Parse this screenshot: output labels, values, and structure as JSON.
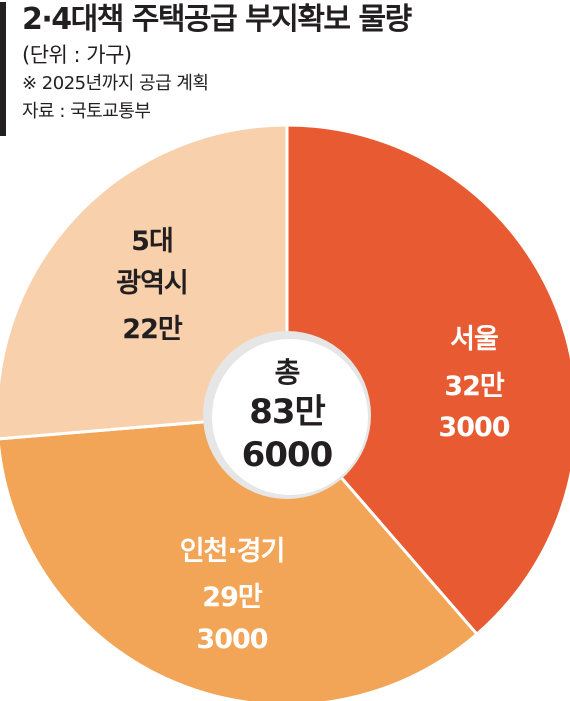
{
  "header": {
    "title": "2·4대책 주택공급 부지확보 물량",
    "unit": "(단위 : 가구)",
    "note": "※ 2025년까지 공급 계획",
    "source": "자료 : 국토교통부"
  },
  "colors": {
    "seoul": "#e85b32",
    "incheon_gyeonggi": "#f2a557",
    "metro": "#f8d0ac",
    "center_fill": "#ffffff",
    "center_ring": "#e6e6e6"
  },
  "chart_data": {
    "type": "pie",
    "title": "2·4대책 주택공급 부지확보 물량",
    "unit": "가구",
    "total": 836000,
    "total_label": [
      "총",
      "83만",
      "6000"
    ],
    "slices": [
      {
        "key": "seoul",
        "name": "서울",
        "value": 323000,
        "label_lines": [
          "서울",
          "32만",
          "3000"
        ],
        "text_color": "light"
      },
      {
        "key": "incheon_gyeonggi",
        "name": "인천·경기",
        "value": 293000,
        "label_lines": [
          "인천·경기",
          "29만",
          "3000"
        ],
        "text_color": "light"
      },
      {
        "key": "metro",
        "name": "5대 광역시",
        "value": 220000,
        "label_lines": [
          "5대",
          "광역시",
          "22만"
        ],
        "text_color": "dark"
      }
    ]
  }
}
